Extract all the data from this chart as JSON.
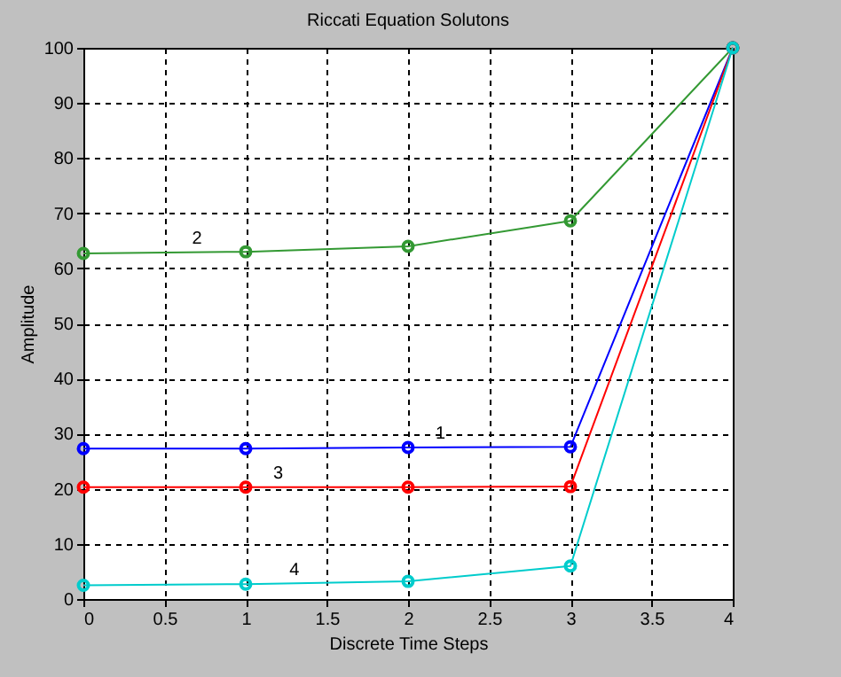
{
  "chart_data": {
    "type": "line",
    "title": "Riccati Equation Solutons",
    "xlabel": "Discrete Time Steps",
    "ylabel": "Amplitude",
    "x": [
      0,
      1,
      2,
      3,
      4
    ],
    "series": [
      {
        "color": "#0000ff",
        "values": [
          27.3,
          27.3,
          27.5,
          27.6,
          100
        ]
      },
      {
        "color": "#339933",
        "values": [
          62.7,
          63,
          64,
          68.6,
          100
        ]
      },
      {
        "color": "#ff0000",
        "values": [
          20.3,
          20.3,
          20.3,
          20.4,
          100
        ]
      },
      {
        "color": "#00cccc",
        "values": [
          2.5,
          2.7,
          3.2,
          6,
          100
        ]
      }
    ],
    "annotations": [
      {
        "text": "1",
        "x": 2.2,
        "y": 27.5
      },
      {
        "text": "2",
        "x": 0.7,
        "y": 62.9
      },
      {
        "text": "3",
        "x": 1.2,
        "y": 20.3
      },
      {
        "text": "4",
        "x": 1.3,
        "y": 2.8
      }
    ],
    "xlim": [
      0,
      4
    ],
    "xticks": [
      0,
      0.5,
      1,
      1.5,
      2,
      2.5,
      3,
      3.5,
      4
    ],
    "ylim": [
      0,
      100
    ],
    "yticks": [
      0,
      10,
      20,
      30,
      40,
      50,
      60,
      70,
      80,
      90,
      100
    ],
    "grid": true,
    "marker": "circle",
    "line_style": "solid"
  }
}
